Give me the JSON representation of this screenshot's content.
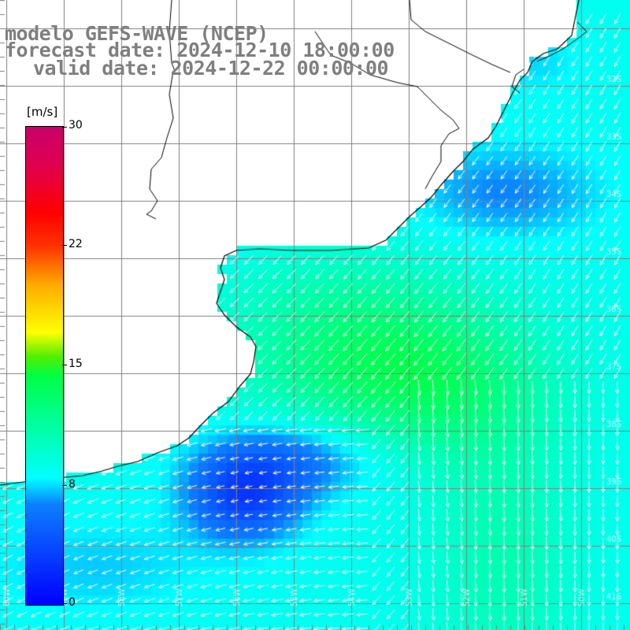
{
  "title": {
    "line1": "modelo GEFS-WAVE (NCEP)",
    "line2": "forecast date: 2024-12-10 18:00:00",
    "line3": "valid date: 2024-12-22 00:00:00"
  },
  "colorbar": {
    "unit": "[m/s]",
    "ticks": [
      {
        "label": "30",
        "value": 30
      },
      {
        "label": "22",
        "value": 22
      },
      {
        "label": "15",
        "value": 15
      },
      {
        "label": "8",
        "value": 8
      },
      {
        "label": "0",
        "value": 0
      }
    ],
    "min": 0,
    "max": 30
  },
  "map": {
    "field": "wind speed with direction arrows",
    "grid_lines": true,
    "lat_labels": [
      "32S",
      "33S",
      "34S",
      "35S",
      "36S",
      "37S",
      "38S",
      "39S",
      "40S",
      "41S"
    ],
    "lon_labels": [
      "60W",
      "59W",
      "58W",
      "57W",
      "56W",
      "55W",
      "54W",
      "53W",
      "52W",
      "51W",
      "50W"
    ],
    "colors": {
      "land": "#ffffff",
      "coast": "#000000",
      "grid": "#808080",
      "arrows": "#ffffff"
    }
  }
}
